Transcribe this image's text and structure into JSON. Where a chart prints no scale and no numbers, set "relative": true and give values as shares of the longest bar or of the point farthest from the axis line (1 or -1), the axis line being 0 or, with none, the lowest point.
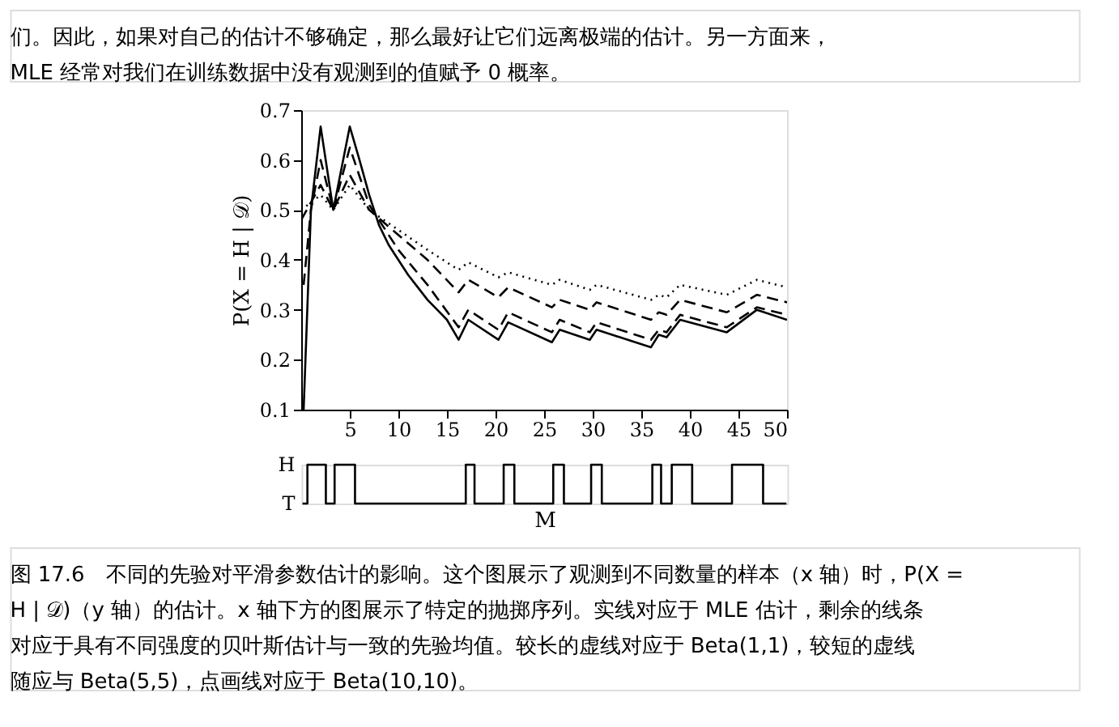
{
  "chart_data": [
    {
      "type": "line",
      "ylabel": "P(X = H | 𝒟)",
      "xlim": [
        0,
        50
      ],
      "ylim": [
        0.1,
        0.7
      ],
      "xticks": [
        5,
        10,
        15,
        20,
        25,
        30,
        35,
        40,
        45,
        50
      ],
      "yticks": [
        0.1,
        0.2,
        0.3,
        0.4,
        0.5,
        0.6,
        0.7
      ],
      "grid": false,
      "annotations": [
        "们。因此，如果对自己的估计不够确定，那么最好让它们远离极端的估计。另一方面来，",
        "MLE 经常对我们在训练数据中没有观测到的值赋予 0 概率。",
        "图 17.6　不同的先验对平滑参数估计的影响。这个图展示了观测到不同数量的样本（x 轴）时，P(X =",
        "H | 𝒟)（y 轴）的估计。x 轴下方的图展示了特定的抛掷序列。实线对应于 MLE 估计，剩余的线条",
        "对应于具有不同强度的贝叶斯估计与一致的先验均值。较长的虚线对应于 Beta(1,1)，较短的虚线",
        "随应与 Beta(5,5)，点画线对应于 Beta(10,10)。"
      ],
      "series": [
        {
          "color": "#000000",
          "line_style": "solid",
          "x": [
            0.25,
            1,
            2,
            3.3,
            5,
            6,
            7,
            8,
            9,
            10,
            11,
            12,
            13,
            14,
            15,
            16.2,
            17.2,
            20.3,
            21.3,
            25.8,
            26.6,
            29.7,
            30.4,
            36,
            36.8,
            37.6,
            39,
            43.8,
            46.9,
            50
          ],
          "values": [
            0.1,
            0.5,
            0.667,
            0.5,
            0.667,
            0.6,
            0.53,
            0.47,
            0.43,
            0.4,
            0.37,
            0.345,
            0.32,
            0.3,
            0.28,
            0.24,
            0.28,
            0.24,
            0.275,
            0.235,
            0.26,
            0.24,
            0.26,
            0.225,
            0.25,
            0.245,
            0.28,
            0.255,
            0.3,
            0.28
          ]
        },
        {
          "color": "#000000",
          "line_style": "dashed",
          "x": [
            0.25,
            1,
            2,
            3.3,
            5,
            7,
            10,
            13,
            16.2,
            17.2,
            20.3,
            21.3,
            25.8,
            26.6,
            29.7,
            30.4,
            36,
            36.8,
            37.6,
            39,
            43.8,
            46.9,
            50
          ],
          "values": [
            0.35,
            0.5,
            0.6,
            0.5,
            0.625,
            0.51,
            0.42,
            0.35,
            0.265,
            0.3,
            0.26,
            0.295,
            0.255,
            0.28,
            0.255,
            0.275,
            0.24,
            0.26,
            0.255,
            0.29,
            0.265,
            0.305,
            0.29
          ]
        },
        {
          "color": "#000000",
          "line_style": "dashed",
          "x": [
            0,
            2,
            3.3,
            5,
            7,
            10,
            13,
            16.2,
            17.2,
            20.3,
            21.3,
            25.8,
            26.6,
            29.7,
            30.4,
            36,
            36.8,
            37.6,
            39,
            43.8,
            46.9,
            50
          ],
          "values": [
            0.48,
            0.55,
            0.5,
            0.57,
            0.5,
            0.45,
            0.4,
            0.335,
            0.36,
            0.325,
            0.345,
            0.305,
            0.32,
            0.3,
            0.315,
            0.28,
            0.295,
            0.29,
            0.32,
            0.295,
            0.33,
            0.315
          ]
        },
        {
          "color": "#000000",
          "line_style": "dotted",
          "x": [
            0,
            2,
            3.3,
            5,
            7,
            10,
            13,
            16.2,
            17.2,
            20.3,
            21.3,
            25.8,
            26.6,
            29.7,
            30.4,
            36,
            36.8,
            37.6,
            39,
            43.8,
            46.9,
            50
          ],
          "values": [
            0.5,
            0.53,
            0.5,
            0.55,
            0.5,
            0.46,
            0.42,
            0.38,
            0.395,
            0.365,
            0.375,
            0.35,
            0.36,
            0.34,
            0.35,
            0.32,
            0.33,
            0.325,
            0.35,
            0.33,
            0.36,
            0.345
          ]
        }
      ]
    },
    {
      "type": "step",
      "xlabel": "M",
      "xlim": [
        0,
        50
      ],
      "relative": true,
      "tick_labels": false,
      "annotations": [
        {
          "text": "H",
          "x": 0,
          "y": 1
        },
        {
          "text": "T",
          "x": 0,
          "y": 0
        }
      ],
      "series": [
        {
          "color": "#000000",
          "x": [
            0.1,
            0.6,
            2.5,
            3.4,
            5.5,
            16.9,
            17.8,
            20.8,
            21.9,
            25.9,
            27.0,
            29.8,
            30.9,
            36.1,
            37.0,
            38.1,
            40.2,
            44.3,
            47.5,
            49.9
          ],
          "values": [
            0,
            1,
            0,
            1,
            0,
            1,
            0,
            1,
            0,
            1,
            0,
            1,
            0,
            1,
            0,
            1,
            0,
            1,
            0,
            0
          ]
        }
      ]
    }
  ]
}
